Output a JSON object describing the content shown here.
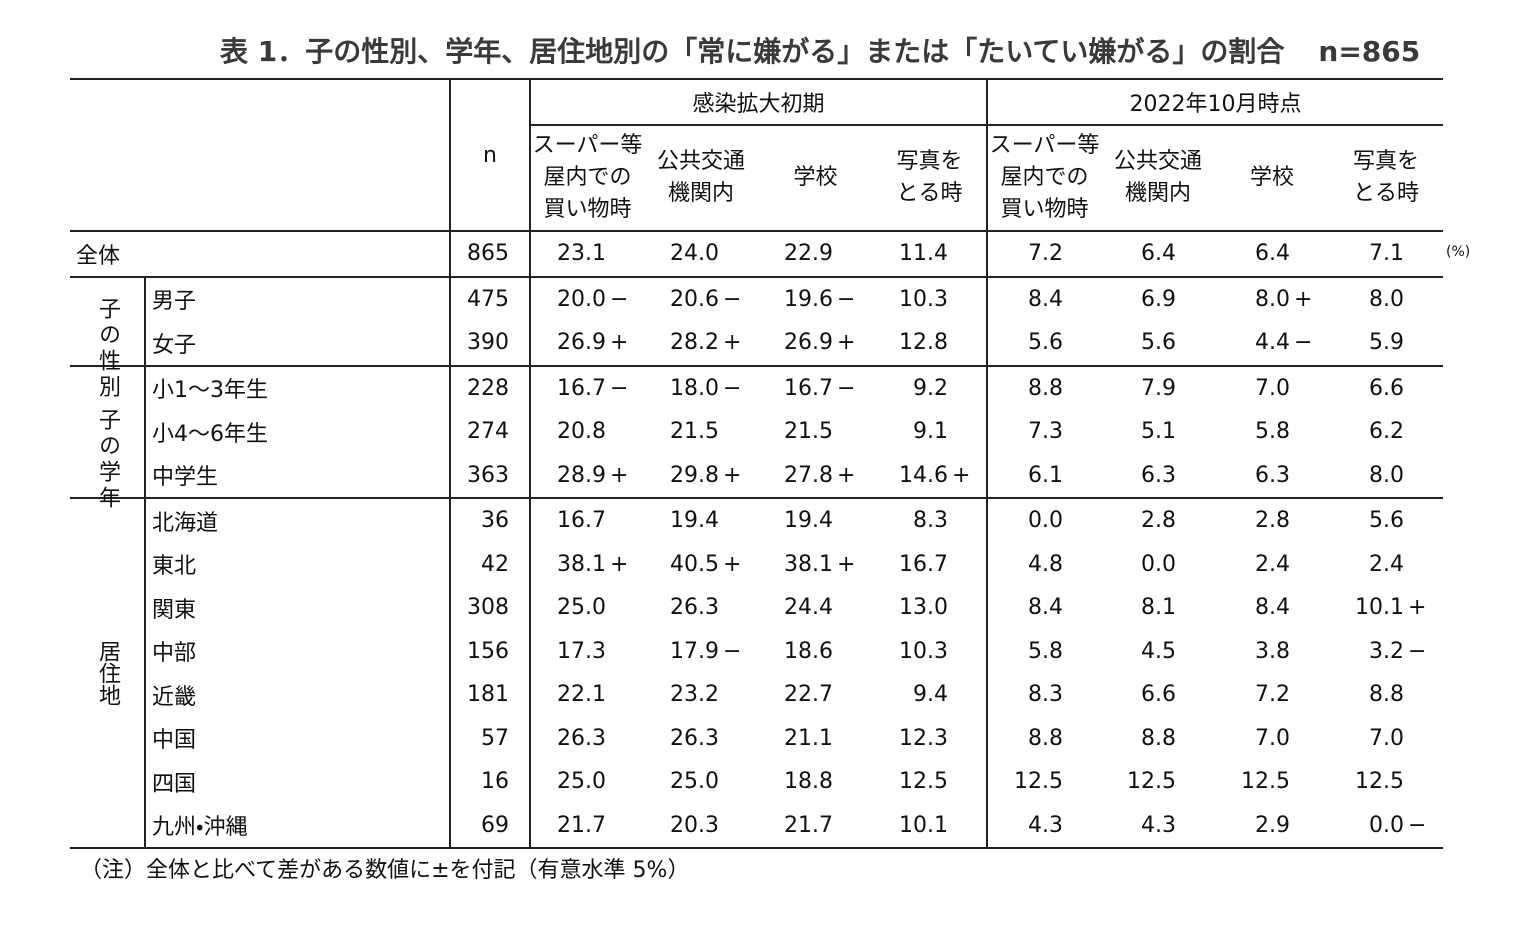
{
  "title": "表 1．子の性別、学年、居住地別の「常に嫌がる」または「たいてい嫌がる」の割合",
  "title_n": "n=865",
  "header": {
    "n": "n",
    "groups": [
      {
        "label": "感染拡大初期",
        "columns": [
          "スーパー等\n屋内での\n買い物時",
          "公共交通\n機関内",
          "学校",
          "写真を\nとる時"
        ]
      },
      {
        "label": "2022年10月時点",
        "columns": [
          "スーパー等\n屋内での\n買い物時",
          "公共交通\n機関内",
          "学校",
          "写真を\nとる時"
        ]
      }
    ]
  },
  "unit": "(%)",
  "total": {
    "label": "全体",
    "n": 865,
    "values": [
      "23.1",
      "24.0",
      "22.9",
      "11.4",
      "7.2",
      "6.4",
      "6.4",
      "7.1"
    ]
  },
  "groups": [
    {
      "label": "子の性別",
      "rows": [
        {
          "label": "男子",
          "n": 475,
          "values": [
            "20.0−",
            "20.6−",
            "19.6−",
            "10.3",
            "8.4",
            "6.9",
            "8.0+",
            "8.0"
          ]
        },
        {
          "label": "女子",
          "n": 390,
          "values": [
            "26.9+",
            "28.2+",
            "26.9+",
            "12.8",
            "5.6",
            "5.6",
            "4.4−",
            "5.9"
          ]
        }
      ]
    },
    {
      "label": "子の学年",
      "rows": [
        {
          "label": "小1～3年生",
          "n": 228,
          "values": [
            "16.7−",
            "18.0−",
            "16.7−",
            "9.2",
            "8.8",
            "7.9",
            "7.0",
            "6.6"
          ]
        },
        {
          "label": "小4～6年生",
          "n": 274,
          "values": [
            "20.8",
            "21.5",
            "21.5",
            "9.1",
            "7.3",
            "5.1",
            "5.8",
            "6.2"
          ]
        },
        {
          "label": "中学生",
          "n": 363,
          "values": [
            "28.9+",
            "29.8+",
            "27.8+",
            "14.6+",
            "6.1",
            "6.3",
            "6.3",
            "8.0"
          ]
        }
      ]
    },
    {
      "label": "居住地",
      "rows": [
        {
          "label": "北海道",
          "n": 36,
          "values": [
            "16.7",
            "19.4",
            "19.4",
            "8.3",
            "0.0",
            "2.8",
            "2.8",
            "5.6"
          ]
        },
        {
          "label": "東北",
          "n": 42,
          "values": [
            "38.1+",
            "40.5+",
            "38.1+",
            "16.7",
            "4.8",
            "0.0",
            "2.4",
            "2.4"
          ]
        },
        {
          "label": "関東",
          "n": 308,
          "values": [
            "25.0",
            "26.3",
            "24.4",
            "13.0",
            "8.4",
            "8.1",
            "8.4",
            "10.1+"
          ]
        },
        {
          "label": "中部",
          "n": 156,
          "values": [
            "17.3",
            "17.9−",
            "18.6",
            "10.3",
            "5.8",
            "4.5",
            "3.8",
            "3.2−"
          ]
        },
        {
          "label": "近畿",
          "n": 181,
          "values": [
            "22.1",
            "23.2",
            "22.7",
            "9.4",
            "8.3",
            "6.6",
            "7.2",
            "8.8"
          ]
        },
        {
          "label": "中国",
          "n": 57,
          "values": [
            "26.3",
            "26.3",
            "21.1",
            "12.3",
            "8.8",
            "8.8",
            "7.0",
            "7.0"
          ]
        },
        {
          "label": "四国",
          "n": 16,
          "values": [
            "25.0",
            "25.0",
            "18.8",
            "12.5",
            "12.5",
            "12.5",
            "12.5",
            "12.5"
          ]
        },
        {
          "label": "九州・沖縄",
          "n": 69,
          "values": [
            "21.7",
            "20.3",
            "21.7",
            "10.1",
            "4.3",
            "4.3",
            "2.9",
            "0.0−"
          ]
        }
      ]
    }
  ],
  "note": "（注）全体と比べて差がある数値に±を付記（有意水準 5%）"
}
